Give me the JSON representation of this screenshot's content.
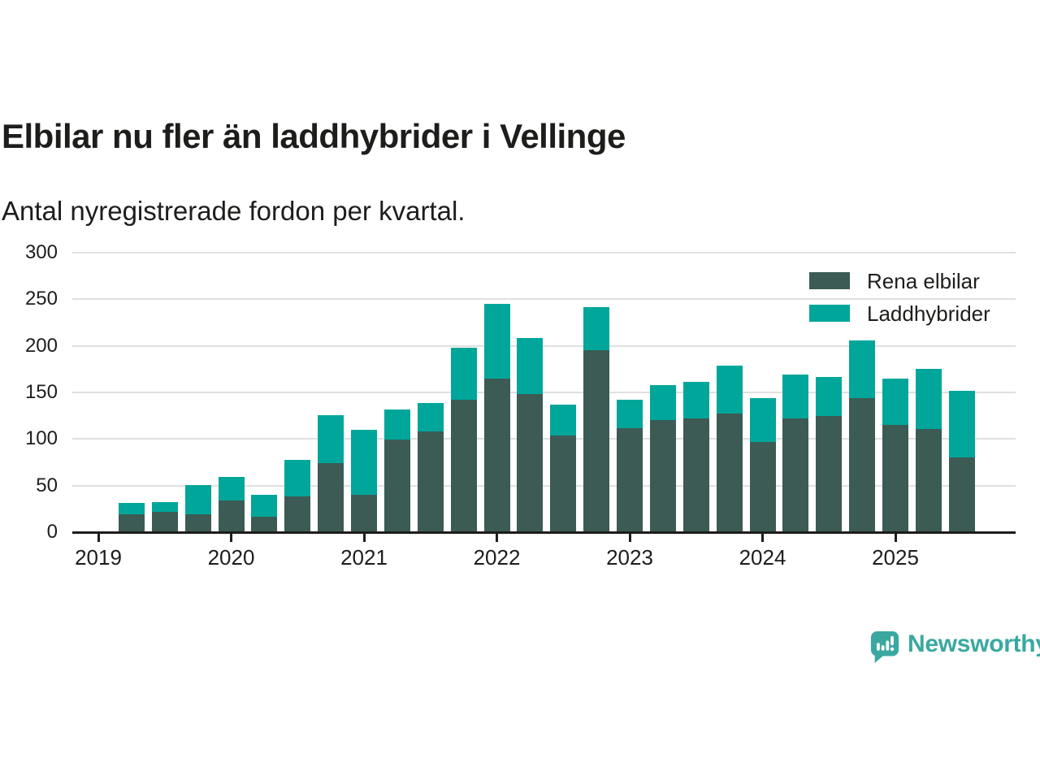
{
  "header": {
    "title": "Elbilar nu fler än laddhybrider i Vellinge",
    "subtitle": "Antal nyregistrerade fordon per kvartal."
  },
  "footer": {
    "brand": "Newsworthy",
    "brand_color": "#3aa8a1"
  },
  "chart_data": {
    "type": "bar",
    "stacked": true,
    "title": "Elbilar nu fler än laddhybrider i Vellinge",
    "subtitle": "Antal nyregistrerade fordon per kvartal.",
    "categories": [
      "K2 2019",
      "K3 2019",
      "K4 2019",
      "K1 2020",
      "K2 2020",
      "K3 2020",
      "K4 2020",
      "K1 2021",
      "K2 2021",
      "K3 2021",
      "K4 2021",
      "K1 2022",
      "K2 2022",
      "K3 2022",
      "K4 2022",
      "K1 2023",
      "K2 2023",
      "K3 2023",
      "K4 2023",
      "K1 2024",
      "K2 2024",
      "K3 2024",
      "K4 2024",
      "K1 2025",
      "K2 2025",
      "K3 2025"
    ],
    "series": [
      {
        "name": "Rena elbilar",
        "color": "#3b5b54",
        "values": [
          19,
          22,
          19,
          34,
          17,
          38,
          74,
          40,
          99,
          108,
          142,
          165,
          148,
          104,
          195,
          112,
          120,
          122,
          127,
          97,
          122,
          125,
          144,
          115,
          111,
          80
        ]
      },
      {
        "name": "Laddhybrider",
        "color": "#00a69a",
        "values": [
          12,
          10,
          32,
          25,
          23,
          40,
          52,
          70,
          33,
          31,
          56,
          80,
          60,
          33,
          47,
          30,
          38,
          39,
          52,
          47,
          47,
          42,
          62,
          50,
          64,
          72
        ]
      }
    ],
    "x_ticks": [
      2019,
      2020,
      2021,
      2022,
      2023,
      2024,
      2025
    ],
    "ylim": [
      0,
      300
    ],
    "yticks": [
      0,
      50,
      100,
      150,
      200,
      250,
      300
    ],
    "grid": "horizontal",
    "grid_color": "#e0e0e0",
    "axis_color": "#1d1d1b",
    "legend_position": "top-right"
  }
}
